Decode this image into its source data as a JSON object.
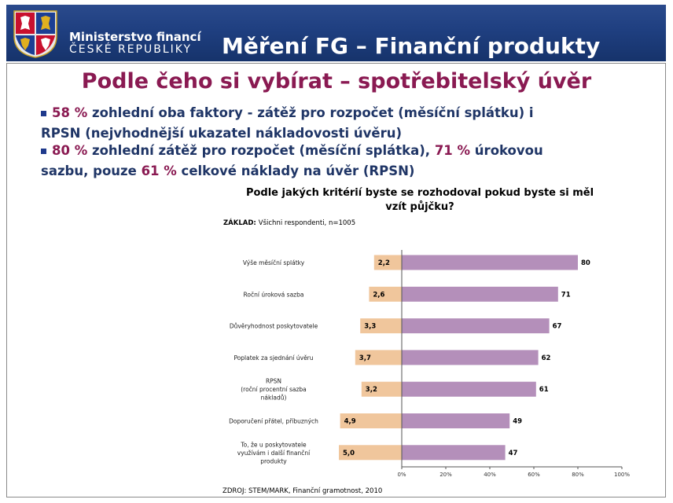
{
  "header": {
    "ministry_line1": "Ministerstvo financí",
    "ministry_line2": "ČESKÉ REPUBLIKY",
    "title": "Měření FG – Finanční produkty"
  },
  "slide": {
    "title": "Podle čeho si vybírat – spotřebitelský úvěr",
    "bullet1": {
      "p1": "58 %",
      "t1": " zohlední oba faktory - zátěž pro rozpočet (měsíční splátku) i",
      "t2": "RPSN (nejvhodnější ukazatel nákladovosti úvěru)"
    },
    "bullet2": {
      "p1": "80 %",
      "t1": " zohlední zátěž pro rozpočet (měsíční splátka), ",
      "p2": "71 %",
      "t2": " úrokovou",
      "t3": "sazbu, pouze ",
      "p3": "61 %",
      "t4": " celkové náklady na úvěr (RPSN)"
    }
  },
  "colors": {
    "header_bg": "#1f3f80",
    "title": "#8a1a52",
    "bullet_text": "#1f3566",
    "bar_purple": "#b48fba",
    "bar_orange": "#f0c69c"
  },
  "chart_data": {
    "type": "bar",
    "orientation": "horizontal",
    "title": "Podle jakých kritérií byste se rozhodoval pokud byste si měl vzít půjčku?",
    "title_lines": [
      "Podle jakých kritérií byste se rozhodoval pokud byste si měl",
      "vzít půjčku?"
    ],
    "base_label": "ZÁKLAD:",
    "base_text": "Všichni respondenti, n=1005",
    "source": "ZDROJ: STEM/MARK, Finanční gramotnost, 2010",
    "categories": [
      [
        "Výše měsíční splátky"
      ],
      [
        "Roční úroková sazba"
      ],
      [
        "Důvěryhodnost poskytovatele"
      ],
      [
        "Poplatek za sjednání úvěru"
      ],
      [
        "RPSN",
        "(roční procentní sazba",
        "nákladů)"
      ],
      [
        "Doporučení přátel, příbuzných"
      ],
      [
        "To, že u poskytovatele",
        "využívám i další finanční",
        "produkty"
      ]
    ],
    "series": [
      {
        "values": [
          80,
          71,
          67,
          62,
          61,
          49,
          47
        ],
        "unit": "%"
      },
      {
        "values": [
          "2,2",
          "2,6",
          "3,3",
          "3,7",
          "3,2",
          "4,9",
          "5,0"
        ]
      }
    ],
    "xlim": [
      0,
      100
    ],
    "xticks": [
      "0%",
      "20%",
      "40%",
      "60%",
      "80%",
      "100%"
    ],
    "grid": false
  }
}
